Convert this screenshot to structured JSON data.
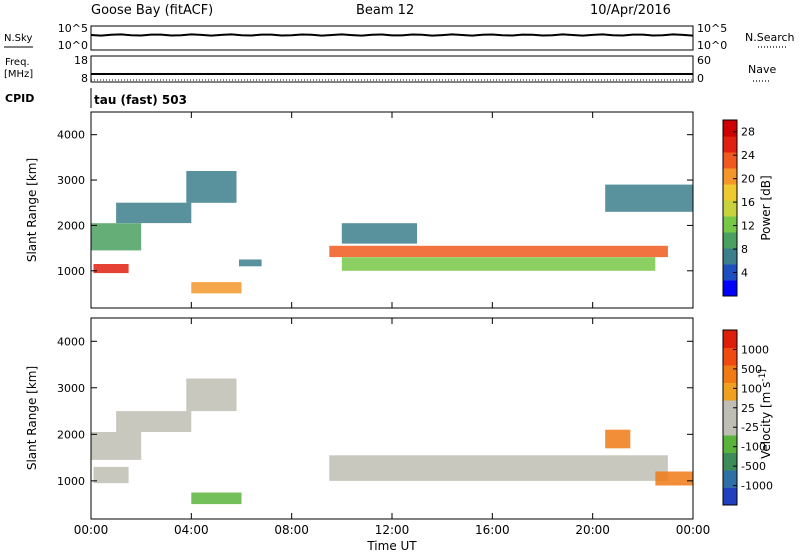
{
  "header": {
    "station": "Goose Bay (fitACF)",
    "beam": "Beam 12",
    "date": "10/Apr/2016"
  },
  "status_panels": {
    "nsky_label": "N.Sky",
    "nsearch_label": "N.Search",
    "noise_ticks": [
      "10^5",
      "10^0"
    ],
    "freq_label_1": "Freq.",
    "freq_label_2": "[MHz]",
    "freq_ticks": [
      "18",
      "8"
    ],
    "nave_label": "Nave",
    "nave_ticks": [
      "60",
      "0"
    ],
    "cpid_label": "CPID",
    "cpid_value": "tau (fast) 503"
  },
  "chart_data": [
    {
      "type": "heatmap",
      "title": "",
      "xlabel": "Time UT",
      "ylabel": "Slant Range [km]",
      "x_ticks": [
        "00:00",
        "04:00",
        "08:00",
        "12:00",
        "16:00",
        "20:00",
        "00:00"
      ],
      "xlim": [
        0,
        24
      ],
      "ylim": [
        180,
        4500
      ],
      "y_ticks": [
        "1000",
        "2000",
        "3000",
        "4000"
      ],
      "colorbar_label": "Power [dB]",
      "colorbar_ticks": [
        "4",
        "8",
        "12",
        "16",
        "20",
        "24",
        "28"
      ],
      "colorbar_colors": [
        "#0000ff",
        "#1f4fbf",
        "#3c7f8c",
        "#4aa060",
        "#78c848",
        "#c8d23c",
        "#f0c830",
        "#f5962a",
        "#f05a1e",
        "#e02010",
        "#cc0000"
      ],
      "value_range": [
        0,
        30
      ],
      "regions": [
        {
          "t0": 0.0,
          "t1": 2.0,
          "r0": 1450,
          "r1": 2050,
          "v": 10
        },
        {
          "t0": 0.1,
          "t1": 1.5,
          "r0": 950,
          "r1": 1150,
          "v": 26
        },
        {
          "t0": 1.0,
          "t1": 4.0,
          "r0": 2050,
          "r1": 2500,
          "v": 8
        },
        {
          "t0": 3.8,
          "t1": 5.8,
          "r0": 2500,
          "r1": 3200,
          "v": 6
        },
        {
          "t0": 4.0,
          "t1": 6.0,
          "r0": 500,
          "r1": 750,
          "v": 20
        },
        {
          "t0": 5.9,
          "t1": 6.8,
          "r0": 1100,
          "r1": 1250,
          "v": 8
        },
        {
          "t0": 9.5,
          "t1": 23.0,
          "r0": 1300,
          "r1": 1550,
          "v": 22
        },
        {
          "t0": 10.0,
          "t1": 22.5,
          "r0": 1000,
          "r1": 1300,
          "v": 12
        },
        {
          "t0": 10.0,
          "t1": 13.0,
          "r0": 1600,
          "r1": 2050,
          "v": 6
        },
        {
          "t0": 20.5,
          "t1": 24.0,
          "r0": 2300,
          "r1": 2900,
          "v": 8
        }
      ]
    },
    {
      "type": "heatmap",
      "title": "",
      "xlabel": "Time UT",
      "ylabel": "Slant Range [km]",
      "x_ticks": [
        "00:00",
        "04:00",
        "08:00",
        "12:00",
        "16:00",
        "20:00",
        "00:00"
      ],
      "xlim": [
        0,
        24
      ],
      "ylim": [
        180,
        4500
      ],
      "y_ticks": [
        "1000",
        "2000",
        "3000",
        "4000"
      ],
      "colorbar_label": "Velocity [m s^-1]",
      "colorbar_ticks": [
        "1000",
        "500",
        "100",
        "25",
        "-25",
        "-100",
        "-500",
        "-1000"
      ],
      "colorbar_colors": [
        "#2040c0",
        "#2f6fa8",
        "#3c8c5a",
        "#5ab43c",
        "#bebeb4",
        "#bebeb4",
        "#f0a020",
        "#f07a14",
        "#f04a10",
        "#dc1e0a"
      ],
      "value_range": [
        -1200,
        1200
      ],
      "regions": [
        {
          "t0": 0.0,
          "t1": 2.0,
          "r0": 1450,
          "r1": 2050,
          "v": 0
        },
        {
          "t0": 0.1,
          "t1": 1.5,
          "r0": 950,
          "r1": 1300,
          "v": 200
        },
        {
          "t0": 1.0,
          "t1": 4.0,
          "r0": 2050,
          "r1": 2500,
          "v": 0
        },
        {
          "t0": 3.8,
          "t1": 5.8,
          "r0": 2500,
          "r1": 3200,
          "v": 0
        },
        {
          "t0": 4.0,
          "t1": 6.0,
          "r0": 500,
          "r1": 750,
          "v": -400
        },
        {
          "t0": 9.5,
          "t1": 23.0,
          "r0": 1000,
          "r1": 1550,
          "v": 0
        },
        {
          "t0": 20.5,
          "t1": 21.5,
          "r0": 1700,
          "r1": 2100,
          "v": 600
        },
        {
          "t0": 22.5,
          "t1": 24.0,
          "r0": 900,
          "r1": 1200,
          "v": 700
        }
      ]
    }
  ]
}
